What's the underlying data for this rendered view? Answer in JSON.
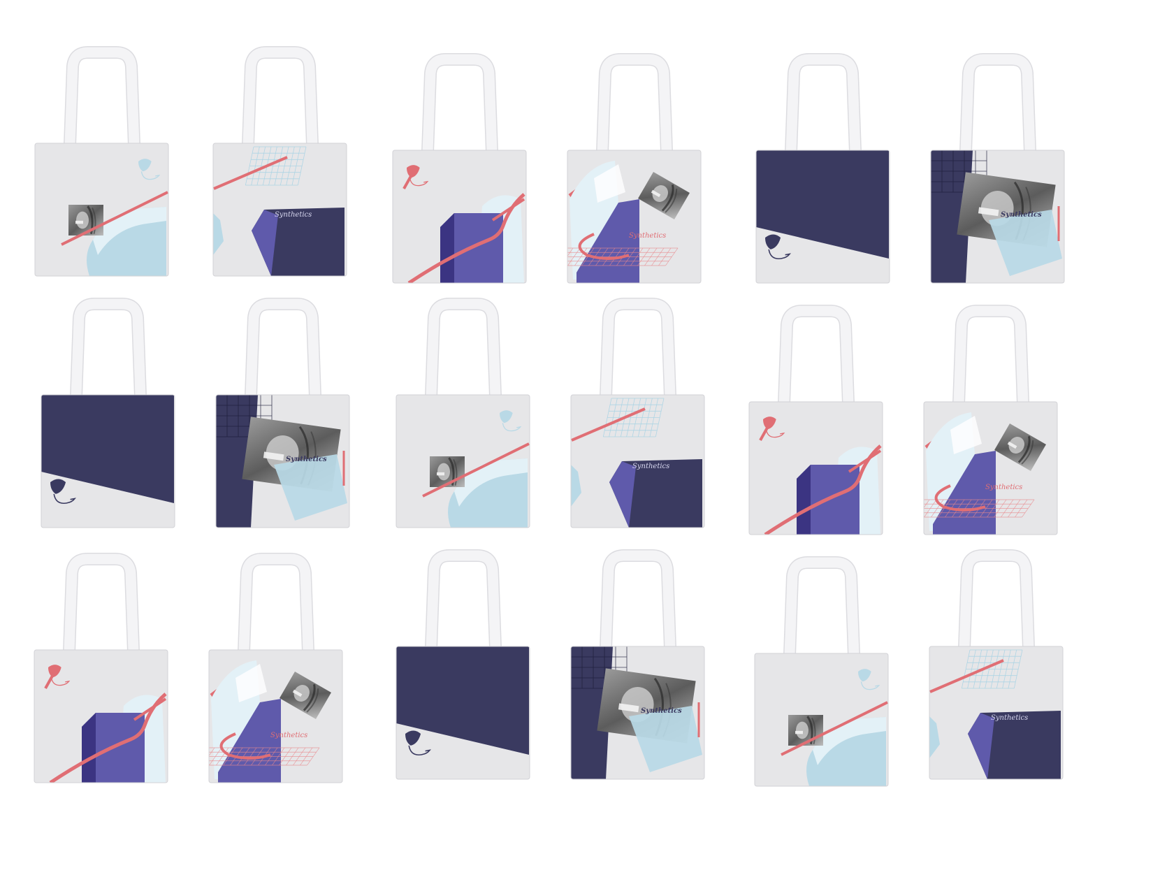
{
  "brand_text": "Synthetics",
  "colors": {
    "canvas": "#e6e6e8",
    "handle": "#f4f4f6",
    "navy": "#3a3a60",
    "violet_dark": "#3b3482",
    "violet": "#5f5aab",
    "coral": "#e06e74",
    "coral_light": "#f1a3a6",
    "ice": "#b9d9e6",
    "ice_light": "#e3f1f7",
    "grid_blue": "#a9d3e4",
    "grid_red": "#e9898c"
  },
  "totes": [
    {
      "design": "A",
      "label": ""
    },
    {
      "design": "B",
      "label": "Synthetics"
    },
    {
      "design": "C",
      "label": ""
    },
    {
      "design": "D",
      "label": "Synthetics"
    },
    {
      "design": "E",
      "label": ""
    },
    {
      "design": "F",
      "label": "Synthetics"
    },
    {
      "design": "E",
      "label": ""
    },
    {
      "design": "F",
      "label": "Synthetics"
    },
    {
      "design": "A",
      "label": ""
    },
    {
      "design": "B",
      "label": "Synthetics"
    },
    {
      "design": "C",
      "label": ""
    },
    {
      "design": "D",
      "label": "Synthetics"
    },
    {
      "design": "C",
      "label": ""
    },
    {
      "design": "D",
      "label": "Synthetics"
    },
    {
      "design": "E",
      "label": ""
    },
    {
      "design": "F",
      "label": "Synthetics"
    },
    {
      "design": "A",
      "label": ""
    },
    {
      "design": "B",
      "label": "Synthetics"
    }
  ]
}
